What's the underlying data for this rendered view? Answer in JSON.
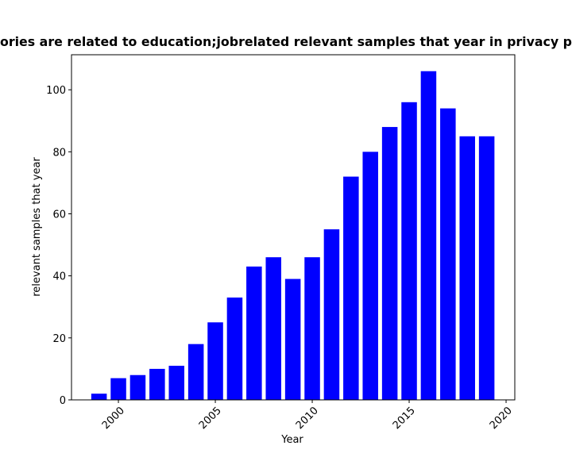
{
  "chart_data": {
    "type": "bar",
    "title": "ories are related to education;jobrelated relevant samples that year in privacy p",
    "x_label": "Year",
    "y_label": "relevant samples that year",
    "x": [
      1999,
      2000,
      2001,
      2002,
      2003,
      2004,
      2005,
      2006,
      2007,
      2008,
      2009,
      2010,
      2011,
      2012,
      2013,
      2014,
      2015,
      2016,
      2017,
      2018,
      2019
    ],
    "values": [
      2,
      7,
      8,
      10,
      11,
      18,
      25,
      33,
      43,
      46,
      39,
      46,
      55,
      72,
      80,
      88,
      96,
      106,
      94,
      85,
      85
    ],
    "color": "#0000ff",
    "xlim": [
      1997.58,
      2020.45
    ],
    "xticks": [
      2000,
      2005,
      2010,
      2015,
      2020
    ],
    "ylim": [
      0,
      111.3
    ],
    "yticks": [
      0,
      20,
      40,
      60,
      80,
      100
    ],
    "bar_width": 0.8,
    "grid": false
  }
}
